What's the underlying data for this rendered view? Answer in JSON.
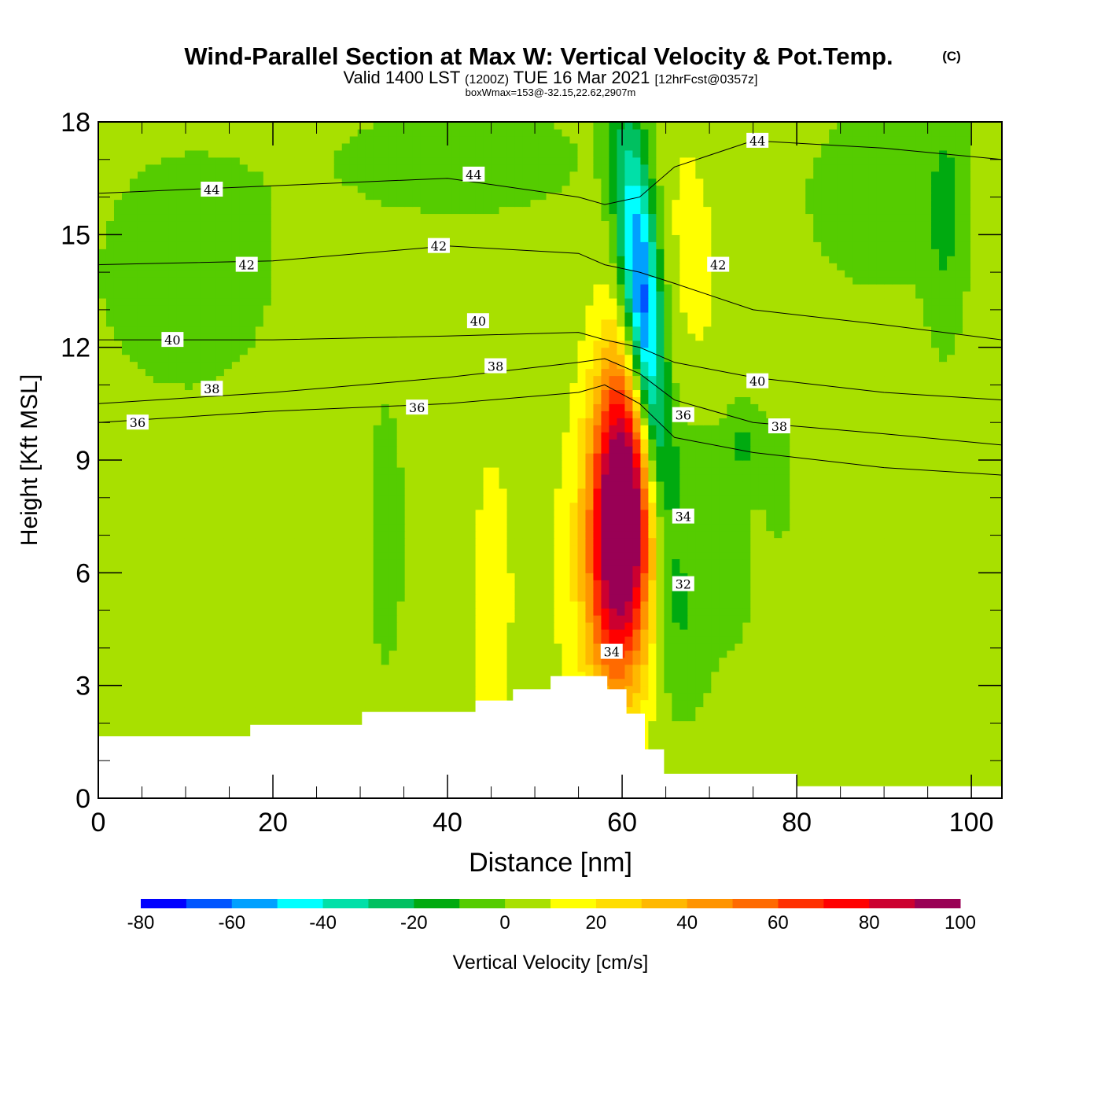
{
  "header": {
    "title": "Wind-Parallel Section at Max W: Vertical Velocity & Pot.Temp.",
    "copyright": "(C)",
    "valid_prefix": "Valid 1400 LST",
    "valid_zulu": "(1200Z)",
    "valid_date": "TUE 16 Mar 2021",
    "forecast": "[12hrFcst@0357z]",
    "box_info": "boxWmax=153@-32.15,22.62,2907m"
  },
  "chart_data": {
    "type": "heatmap",
    "xlabel": "Distance [nm]",
    "ylabel": "Height [Kft MSL]",
    "xlim": [
      0,
      103.5
    ],
    "ylim": [
      0,
      18
    ],
    "xticks": [
      0,
      20,
      40,
      60,
      80,
      100
    ],
    "yticks": [
      0,
      3,
      6,
      9,
      12,
      15,
      18
    ],
    "colorbar": {
      "label": "Vertical Velocity [cm/s]",
      "levels": [
        -80,
        -70,
        -60,
        -50,
        -40,
        -30,
        -20,
        -10,
        0,
        10,
        20,
        30,
        40,
        50,
        60,
        70,
        80,
        90,
        100
      ],
      "tick_labels": [
        "-80",
        "-60",
        "-40",
        "-20",
        "0",
        "20",
        "40",
        "60",
        "80",
        "100"
      ],
      "colors": [
        "#0000ff",
        "#0055ff",
        "#00a0ff",
        "#00ffff",
        "#00e0a8",
        "#00c060",
        "#00aa10",
        "#55cc00",
        "#a8e000",
        "#ffff00",
        "#ffdd00",
        "#ffb800",
        "#ff9400",
        "#ff6a00",
        "#ff3000",
        "#ff0000",
        "#cc0030",
        "#990055"
      ]
    },
    "background_value": 5,
    "velocity_features": [
      {
        "x": 62.5,
        "y": 12.5,
        "sx": 1.6,
        "sy": 3.5,
        "tilt": -0.32,
        "amp": -85
      },
      {
        "x": 60.0,
        "y": 7.5,
        "sx": 2.6,
        "sy": 3.0,
        "tilt": 0.12,
        "amp": 125
      },
      {
        "x": 68.0,
        "y": 15.0,
        "sx": 2.5,
        "sy": 2.8,
        "tilt": -0.3,
        "amp": 8
      },
      {
        "x": 52.0,
        "y": 6.0,
        "sx": 3.5,
        "sy": 3.0,
        "tilt": 0,
        "amp": 4
      },
      {
        "x": 10.0,
        "y": 14.0,
        "sx": 9.0,
        "sy": 2.8,
        "tilt": 0,
        "amp": -9
      },
      {
        "x": 42.0,
        "y": 17.0,
        "sx": 12.0,
        "sy": 1.3,
        "tilt": 0,
        "amp": -9
      },
      {
        "x": 90.0,
        "y": 16.0,
        "sx": 8.0,
        "sy": 2.2,
        "tilt": 0,
        "amp": -9
      },
      {
        "x": 97.0,
        "y": 15.5,
        "sx": 1.5,
        "sy": 2.5,
        "tilt": 0,
        "amp": -13
      },
      {
        "x": 67.0,
        "y": 5.0,
        "sx": 2.5,
        "sy": 2.0,
        "tilt": 0,
        "amp": -14
      },
      {
        "x": 68.0,
        "y": 9.0,
        "sx": 3.0,
        "sy": 1.0,
        "tilt": 0,
        "amp": -10
      },
      {
        "x": 74.0,
        "y": 9.5,
        "sx": 1.5,
        "sy": 0.8,
        "tilt": 0,
        "amp": -14
      },
      {
        "x": 33.0,
        "y": 7.0,
        "sx": 2.0,
        "sy": 3.5,
        "tilt": 0,
        "amp": -8
      },
      {
        "x": 45.0,
        "y": 5.0,
        "sx": 1.5,
        "sy": 3.0,
        "tilt": 0,
        "amp": 11
      },
      {
        "x": 73.0,
        "y": 6.0,
        "sx": 2.0,
        "sy": 2.0,
        "tilt": 0,
        "amp": -7
      },
      {
        "x": 78.0,
        "y": 8.5,
        "sx": 1.5,
        "sy": 1.5,
        "tilt": 0,
        "amp": -8
      }
    ],
    "terrain": [
      [
        0,
        1.65
      ],
      [
        17.4,
        1.65
      ],
      [
        17.4,
        1.95
      ],
      [
        30.2,
        1.95
      ],
      [
        30.2,
        2.3
      ],
      [
        43.2,
        2.3
      ],
      [
        43.2,
        2.6
      ],
      [
        47.5,
        2.6
      ],
      [
        47.5,
        2.9
      ],
      [
        51.8,
        2.9
      ],
      [
        51.8,
        3.25
      ],
      [
        58.3,
        3.25
      ],
      [
        58.3,
        2.9
      ],
      [
        60.5,
        2.9
      ],
      [
        60.5,
        2.25
      ],
      [
        62.6,
        2.25
      ],
      [
        62.6,
        1.3
      ],
      [
        64.8,
        1.3
      ],
      [
        64.8,
        0.65
      ],
      [
        80,
        0.65
      ],
      [
        80,
        0.32
      ],
      [
        103.5,
        0.32
      ]
    ],
    "theta_contours": [
      {
        "level": 36,
        "points": [
          [
            0,
            10.0
          ],
          [
            20,
            10.3
          ],
          [
            40,
            10.5
          ],
          [
            55,
            10.8
          ],
          [
            58,
            11.0
          ],
          [
            62,
            10.5
          ],
          [
            66,
            9.6
          ],
          [
            75,
            9.2
          ],
          [
            90,
            8.8
          ],
          [
            103.5,
            8.6
          ]
        ]
      },
      {
        "level": 38,
        "points": [
          [
            0,
            10.5
          ],
          [
            20,
            10.8
          ],
          [
            40,
            11.2
          ],
          [
            55,
            11.6
          ],
          [
            58,
            11.7
          ],
          [
            62,
            11.3
          ],
          [
            66,
            10.6
          ],
          [
            75,
            10.0
          ],
          [
            90,
            9.7
          ],
          [
            103.5,
            9.4
          ]
        ]
      },
      {
        "level": 40,
        "points": [
          [
            0,
            12.2
          ],
          [
            20,
            12.2
          ],
          [
            40,
            12.3
          ],
          [
            55,
            12.4
          ],
          [
            58,
            12.2
          ],
          [
            62,
            12.0
          ],
          [
            66,
            11.6
          ],
          [
            75,
            11.2
          ],
          [
            90,
            10.8
          ],
          [
            103.5,
            10.6
          ]
        ]
      },
      {
        "level": 42,
        "points": [
          [
            0,
            14.2
          ],
          [
            20,
            14.3
          ],
          [
            40,
            14.7
          ],
          [
            55,
            14.5
          ],
          [
            58,
            14.2
          ],
          [
            62,
            14.0
          ],
          [
            66,
            13.7
          ],
          [
            75,
            13.0
          ],
          [
            90,
            12.6
          ],
          [
            103.5,
            12.2
          ]
        ]
      },
      {
        "level": 44,
        "points": [
          [
            0,
            16.1
          ],
          [
            20,
            16.3
          ],
          [
            40,
            16.5
          ],
          [
            55,
            16.0
          ],
          [
            58,
            15.8
          ],
          [
            62,
            16.0
          ],
          [
            66,
            16.8
          ],
          [
            75,
            17.5
          ],
          [
            90,
            17.3
          ],
          [
            103.5,
            17.0
          ]
        ]
      }
    ],
    "theta_labels": [
      {
        "text": "44",
        "x": 13,
        "y": 16.2
      },
      {
        "text": "44",
        "x": 43,
        "y": 16.6
      },
      {
        "text": "44",
        "x": 75.5,
        "y": 17.5
      },
      {
        "text": "42",
        "x": 17,
        "y": 14.2
      },
      {
        "text": "42",
        "x": 39,
        "y": 14.7
      },
      {
        "text": "42",
        "x": 71,
        "y": 14.2
      },
      {
        "text": "40",
        "x": 8.5,
        "y": 12.2
      },
      {
        "text": "40",
        "x": 43.5,
        "y": 12.7
      },
      {
        "text": "40",
        "x": 75.5,
        "y": 11.1
      },
      {
        "text": "38",
        "x": 13,
        "y": 10.9
      },
      {
        "text": "38",
        "x": 45.5,
        "y": 11.5
      },
      {
        "text": "38",
        "x": 78,
        "y": 9.9
      },
      {
        "text": "36",
        "x": 4.5,
        "y": 10.0
      },
      {
        "text": "36",
        "x": 36.5,
        "y": 10.4
      },
      {
        "text": "36",
        "x": 67,
        "y": 10.2
      },
      {
        "text": "34",
        "x": 67,
        "y": 7.5
      },
      {
        "text": "34",
        "x": 58.8,
        "y": 3.9
      },
      {
        "text": "32",
        "x": 67,
        "y": 5.7
      }
    ]
  }
}
